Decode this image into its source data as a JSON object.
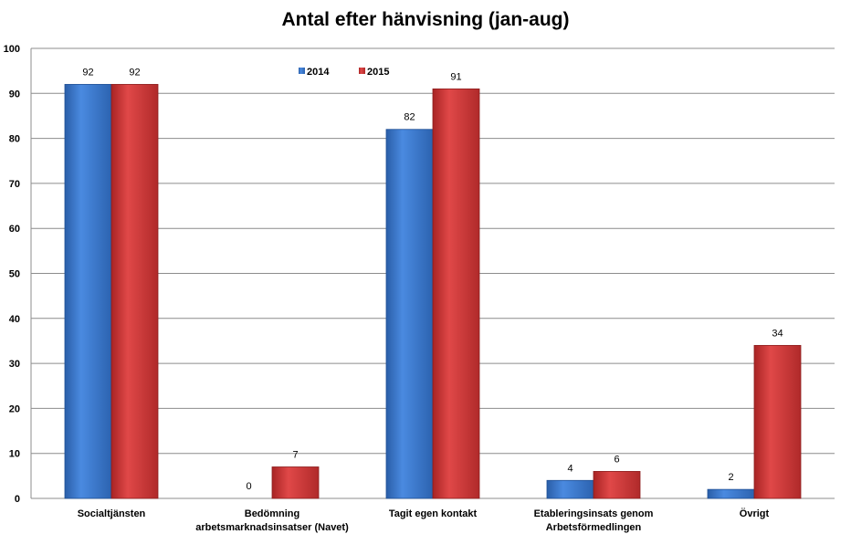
{
  "chart_data": {
    "type": "bar",
    "title": "Antal efter hänvisning (jan-aug)",
    "categories": [
      [
        "Socialtjänsten"
      ],
      [
        "Bedömning",
        "arbetsmarknadsinsatser (Navet)"
      ],
      [
        "Tagit egen kontakt"
      ],
      [
        "Etableringsinsats genom",
        "Arbetsförmedlingen"
      ],
      [
        "Övrigt"
      ]
    ],
    "series": [
      {
        "name": "2014",
        "values": [
          92,
          0,
          82,
          4,
          2
        ],
        "color": "#3c78c8"
      },
      {
        "name": "2015",
        "values": [
          92,
          7,
          91,
          6,
          34
        ],
        "color": "#cc3333"
      }
    ],
    "ylim": [
      0,
      100
    ],
    "yticks": [
      0,
      10,
      20,
      30,
      40,
      50,
      60,
      70,
      80,
      90,
      100
    ],
    "grid": true,
    "legend": "top-center"
  }
}
